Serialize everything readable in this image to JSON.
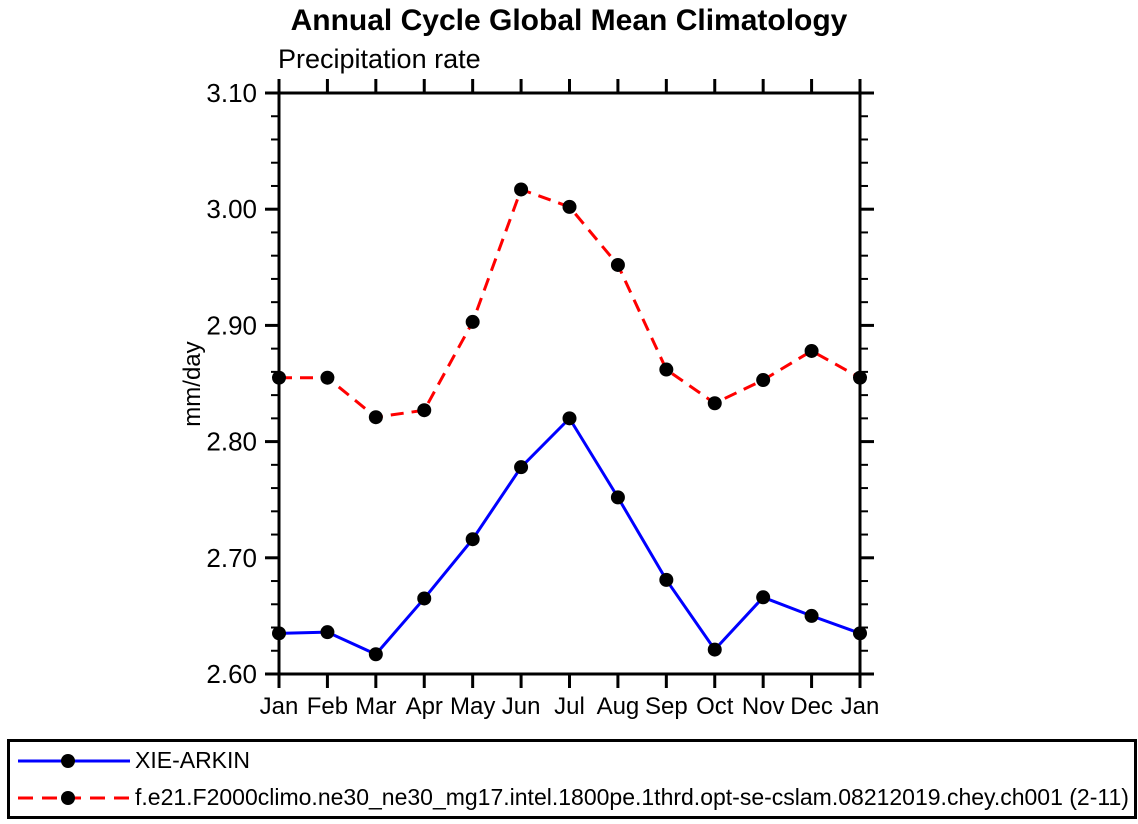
{
  "title": "Annual Cycle Global Mean Climatology",
  "subtitle": "Precipitation rate",
  "colors": {
    "axis": "#000000",
    "marker": "#000000",
    "series1": "#0000ff",
    "series2": "#ff0000",
    "background": "#ffffff"
  },
  "chart_data": {
    "type": "line",
    "title": "Annual Cycle Global Mean Climatology",
    "subtitle": "Precipitation rate",
    "xlabel": "",
    "ylabel": "mm/day",
    "categories": [
      "Jan",
      "Feb",
      "Mar",
      "Apr",
      "May",
      "Jun",
      "Jul",
      "Aug",
      "Sep",
      "Oct",
      "Nov",
      "Dec",
      "Jan"
    ],
    "series": [
      {
        "name": "XIE-ARKIN",
        "color": "#0000ff",
        "line_style": "solid",
        "marker": "filled-circle",
        "marker_color": "#000000",
        "values": [
          2.635,
          2.636,
          2.617,
          2.665,
          2.716,
          2.778,
          2.82,
          2.752,
          2.681,
          2.621,
          2.666,
          2.65,
          2.635
        ]
      },
      {
        "name": "f.e21.F2000climo.ne30_ne30_mg17.intel.1800pe.1thrd.opt-se-cslam.08212019.chey.ch001 (2-11)",
        "color": "#ff0000",
        "line_style": "dashed",
        "marker": "filled-circle",
        "marker_color": "#000000",
        "values": [
          2.855,
          2.855,
          2.821,
          2.827,
          2.903,
          3.017,
          3.002,
          2.952,
          2.862,
          2.833,
          2.853,
          2.878,
          2.855
        ]
      }
    ],
    "ylim": [
      2.6,
      3.1
    ],
    "ytick_major_step": 0.1,
    "ytick_minor_step": 0.02,
    "ytick_labels": [
      "2.60",
      "2.70",
      "2.80",
      "2.90",
      "3.00",
      "3.10"
    ],
    "grid": false,
    "frame": true,
    "legend_position": "bottom"
  }
}
